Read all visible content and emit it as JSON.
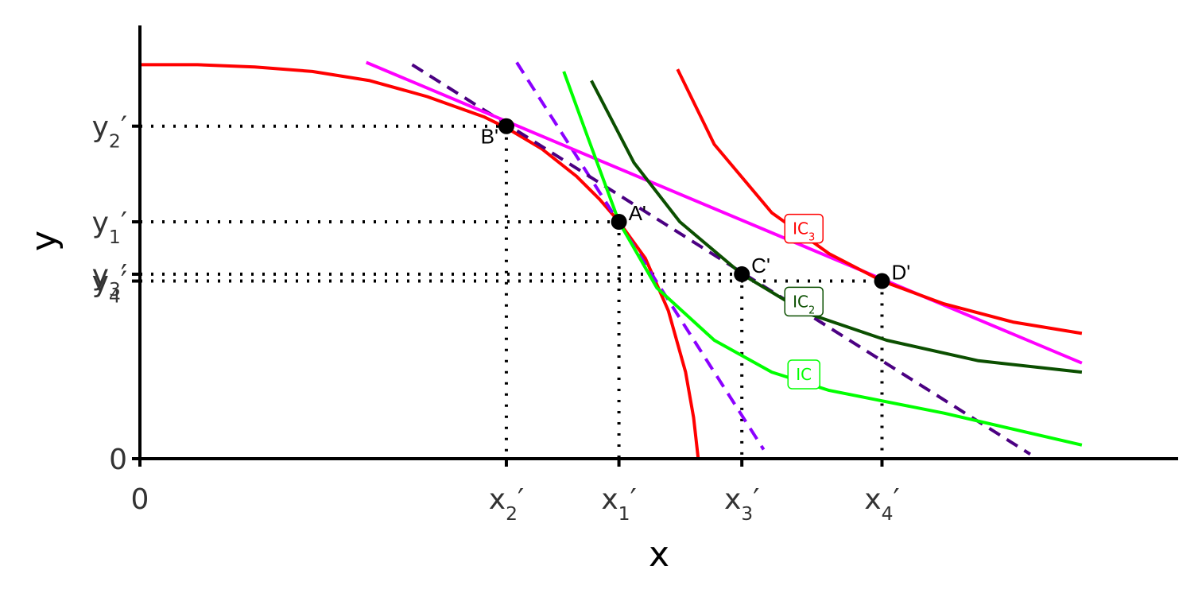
{
  "chart_data": {
    "type": "line",
    "title": "",
    "xlabel": "x",
    "ylabel": "y",
    "xlim": [
      0,
      9.0
    ],
    "ylim": [
      0,
      1.9
    ],
    "x_ticks": [
      {
        "label": "0",
        "sub": "",
        "value": 0
      },
      {
        "label": "x",
        "sub": "2",
        "value": 3.19
      },
      {
        "label": "x",
        "sub": "1",
        "value": 4.17
      },
      {
        "label": "x",
        "sub": "3",
        "value": 5.24
      },
      {
        "label": "x",
        "sub": "4",
        "value": 6.46
      }
    ],
    "y_ticks": [
      {
        "label": "0",
        "sub": "",
        "value": 0
      },
      {
        "label": "y",
        "sub": "4",
        "value": 0.78
      },
      {
        "label": "y",
        "sub": "3",
        "value": 0.81
      },
      {
        "label": "y",
        "sub": "1",
        "value": 1.04
      },
      {
        "label": "y",
        "sub": "2",
        "value": 1.46
      }
    ],
    "points": [
      {
        "name": "A'",
        "x": 4.17,
        "y": 1.04
      },
      {
        "name": "B'",
        "x": 3.19,
        "y": 1.46
      },
      {
        "name": "C'",
        "x": 5.24,
        "y": 0.81
      },
      {
        "name": "D'",
        "x": 6.46,
        "y": 0.78
      }
    ],
    "series": [
      {
        "key": "ppf",
        "color": "#FF0000",
        "style": "solid",
        "points": [
          [
            0,
            1.73
          ],
          [
            0.5,
            1.73
          ],
          [
            1.0,
            1.72
          ],
          [
            1.5,
            1.7
          ],
          [
            2.0,
            1.66
          ],
          [
            2.5,
            1.59
          ],
          [
            3.0,
            1.5
          ],
          [
            3.2,
            1.45
          ],
          [
            3.5,
            1.36
          ],
          [
            3.8,
            1.24
          ],
          [
            4.0,
            1.14
          ],
          [
            4.17,
            1.04
          ],
          [
            4.4,
            0.88
          ],
          [
            4.6,
            0.65
          ],
          [
            4.75,
            0.38
          ],
          [
            4.82,
            0.18
          ],
          [
            4.86,
            0.0
          ]
        ]
      },
      {
        "key": "mrt_a",
        "color": "#8B00FF",
        "style": "dashed",
        "points": [
          [
            3.28,
            1.74
          ],
          [
            5.43,
            0.04
          ]
        ]
      },
      {
        "key": "mrt_b",
        "color": "#4B0082",
        "style": "dashed",
        "points": [
          [
            2.37,
            1.73
          ],
          [
            7.75,
            0.02
          ]
        ]
      },
      {
        "key": "tangent_d",
        "color": "#FF00FF",
        "style": "solid",
        "points": [
          [
            1.97,
            1.74
          ],
          [
            8.2,
            0.42
          ]
        ]
      },
      {
        "label": "IC",
        "sub": "",
        "color": "#00FF00",
        "style": "solid",
        "points": [
          [
            3.69,
            1.7
          ],
          [
            3.9,
            1.41
          ],
          [
            4.17,
            1.04
          ],
          [
            4.5,
            0.75
          ],
          [
            5.0,
            0.52
          ],
          [
            5.5,
            0.38
          ],
          [
            6.0,
            0.3
          ],
          [
            7.0,
            0.2
          ],
          [
            8.2,
            0.06
          ]
        ]
      },
      {
        "label": "IC",
        "sub": "2",
        "color": "#0B4F00",
        "style": "solid",
        "points": [
          [
            3.93,
            1.66
          ],
          [
            4.3,
            1.3
          ],
          [
            4.7,
            1.04
          ],
          [
            5.24,
            0.81
          ],
          [
            5.8,
            0.64
          ],
          [
            6.5,
            0.52
          ],
          [
            7.3,
            0.43
          ],
          [
            8.2,
            0.38
          ]
        ]
      },
      {
        "label": "IC",
        "sub": "3",
        "color": "#FF0000",
        "style": "solid",
        "points": [
          [
            4.68,
            1.71
          ],
          [
            5.0,
            1.38
          ],
          [
            5.5,
            1.08
          ],
          [
            6.0,
            0.9
          ],
          [
            6.46,
            0.78
          ],
          [
            7.0,
            0.68
          ],
          [
            7.6,
            0.6
          ],
          [
            8.2,
            0.55
          ]
        ]
      }
    ],
    "ic_labels": [
      {
        "text": "IC",
        "sub": "3",
        "color": "#FF0000",
        "x": 5.78,
        "y": 1.01
      },
      {
        "text": "IC",
        "sub": "2",
        "color": "#0B4F00",
        "x": 5.78,
        "y": 0.69
      },
      {
        "text": "IC",
        "sub": "",
        "color": "#00FF00",
        "x": 5.78,
        "y": 0.37
      }
    ]
  }
}
